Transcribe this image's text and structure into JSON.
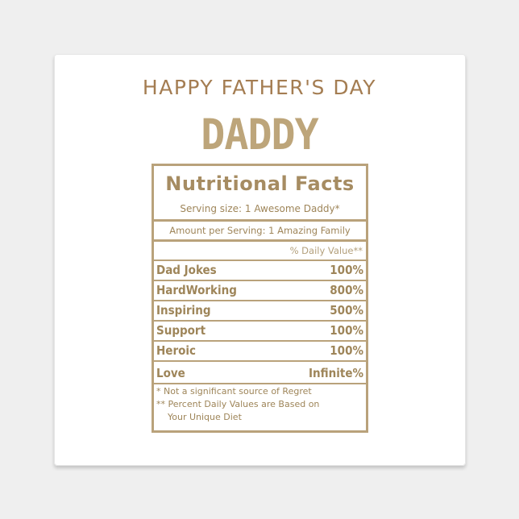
{
  "greeting": "HAPPY FATHER'S DAY",
  "name": "DADDY",
  "label": {
    "title": "Nutritional  Facts",
    "serving": "Serving size: 1 Awesome Daddy*",
    "amount": "Amount per Serving: 1 Amazing Family",
    "daily_value_header": "% Daily Value**",
    "rows": [
      {
        "name": "Dad  Jokes",
        "value": "100%"
      },
      {
        "name": "HardWorking",
        "value": "800%"
      },
      {
        "name": "Inspiring",
        "value": "500%"
      },
      {
        "name": "Support",
        "value": "100%"
      },
      {
        "name": "Heroic",
        "value": "100%"
      },
      {
        "name": "Love",
        "value": "Infinite%"
      }
    ],
    "notes": [
      "* Not a significant source of Regret",
      "** Percent Daily Values are Based on",
      "Your Unique Diet"
    ]
  },
  "colors": {
    "text_brown": "#a47d52",
    "gold": "#b9a27b",
    "background": "#efefef"
  }
}
